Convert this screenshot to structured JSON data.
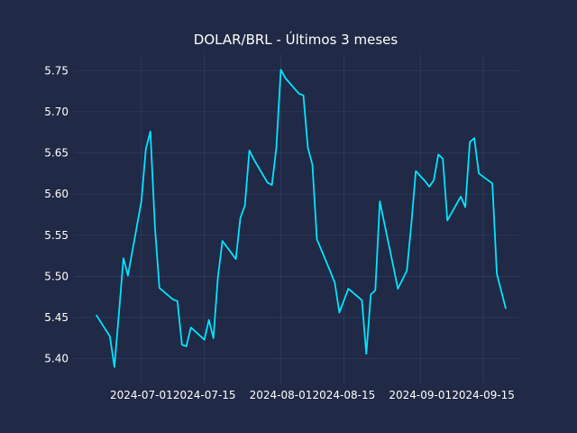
{
  "chart_data": {
    "type": "line",
    "title": "DOLAR/BRL - Últimos 3 meses",
    "xlabel": "",
    "ylabel": "",
    "background": "#202945",
    "grid": true,
    "grid_color": "#2e3d66",
    "xlim": [
      "2024-06-16",
      "2024-09-23"
    ],
    "ylim": [
      5.37,
      5.77
    ],
    "yticks": [
      5.4,
      5.45,
      5.5,
      5.55,
      5.6,
      5.65,
      5.7,
      5.75
    ],
    "ytick_labels": [
      "5.40",
      "5.45",
      "5.50",
      "5.55",
      "5.60",
      "5.65",
      "5.70",
      "5.75"
    ],
    "xticks": [
      "2024-07-01",
      "2024-07-15",
      "2024-08-01",
      "2024-08-15",
      "2024-09-01",
      "2024-09-15"
    ],
    "xtick_labels": [
      "2024-07-01",
      "2024-07-15",
      "2024-08-01",
      "2024-08-15",
      "2024-09-01",
      "2024-09-15"
    ],
    "series": [
      {
        "color": "#00e5ff",
        "points": [
          [
            "2024-06-21",
            5.453
          ],
          [
            "2024-06-24",
            5.427
          ],
          [
            "2024-06-25",
            5.39
          ],
          [
            "2024-06-26",
            5.455
          ],
          [
            "2024-06-27",
            5.522
          ],
          [
            "2024-06-28",
            5.501
          ],
          [
            "2024-07-01",
            5.591
          ],
          [
            "2024-07-02",
            5.655
          ],
          [
            "2024-07-03",
            5.676
          ],
          [
            "2024-07-04",
            5.561
          ],
          [
            "2024-07-05",
            5.486
          ],
          [
            "2024-07-08",
            5.472
          ],
          [
            "2024-07-09",
            5.47
          ],
          [
            "2024-07-10",
            5.417
          ],
          [
            "2024-07-11",
            5.415
          ],
          [
            "2024-07-12",
            5.438
          ],
          [
            "2024-07-15",
            5.423
          ],
          [
            "2024-07-16",
            5.447
          ],
          [
            "2024-07-17",
            5.425
          ],
          [
            "2024-07-18",
            5.499
          ],
          [
            "2024-07-19",
            5.543
          ],
          [
            "2024-07-22",
            5.521
          ],
          [
            "2024-07-23",
            5.571
          ],
          [
            "2024-07-24",
            5.586
          ],
          [
            "2024-07-25",
            5.653
          ],
          [
            "2024-07-26",
            5.642
          ],
          [
            "2024-07-29",
            5.614
          ],
          [
            "2024-07-30",
            5.611
          ],
          [
            "2024-07-31",
            5.656
          ],
          [
            "2024-08-01",
            5.751
          ],
          [
            "2024-08-02",
            5.741
          ],
          [
            "2024-08-05",
            5.722
          ],
          [
            "2024-08-06",
            5.72
          ],
          [
            "2024-08-07",
            5.656
          ],
          [
            "2024-08-08",
            5.636
          ],
          [
            "2024-08-09",
            5.545
          ],
          [
            "2024-08-12",
            5.506
          ],
          [
            "2024-08-13",
            5.492
          ],
          [
            "2024-08-14",
            5.456
          ],
          [
            "2024-08-16",
            5.485
          ],
          [
            "2024-08-19",
            5.471
          ],
          [
            "2024-08-20",
            5.406
          ],
          [
            "2024-08-21",
            5.478
          ],
          [
            "2024-08-22",
            5.483
          ],
          [
            "2024-08-23",
            5.591
          ],
          [
            "2024-08-26",
            5.512
          ],
          [
            "2024-08-27",
            5.485
          ],
          [
            "2024-08-29",
            5.507
          ],
          [
            "2024-08-30",
            5.563
          ],
          [
            "2024-08-31",
            5.628
          ],
          [
            "2024-09-02",
            5.616
          ],
          [
            "2024-09-03",
            5.609
          ],
          [
            "2024-09-04",
            5.617
          ],
          [
            "2024-09-05",
            5.648
          ],
          [
            "2024-09-06",
            5.643
          ],
          [
            "2024-09-07",
            5.568
          ],
          [
            "2024-09-10",
            5.597
          ],
          [
            "2024-09-11",
            5.584
          ],
          [
            "2024-09-12",
            5.663
          ],
          [
            "2024-09-13",
            5.668
          ],
          [
            "2024-09-14",
            5.625
          ],
          [
            "2024-09-17",
            5.613
          ],
          [
            "2024-09-18",
            5.503
          ],
          [
            "2024-09-20",
            5.461
          ]
        ]
      }
    ]
  }
}
